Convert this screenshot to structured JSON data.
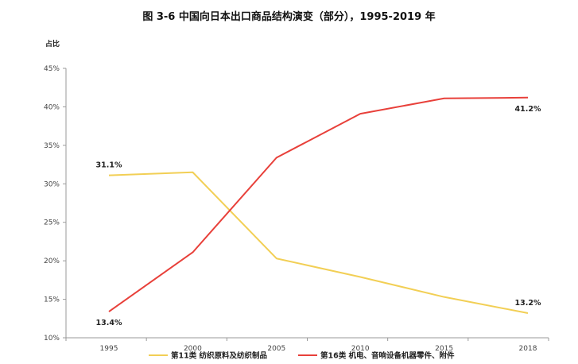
{
  "chart_data": {
    "type": "line",
    "title": "图 3-6 中国向日本出口商品结构演变（部分），1995-2019 年",
    "ylabel": "占比",
    "xlabel": "",
    "x": [
      "1995",
      "2000",
      "2005",
      "2010",
      "2015",
      "2018"
    ],
    "y_ticks": [
      "10%",
      "15%",
      "20%",
      "25%",
      "30%",
      "35%",
      "40%",
      "45%"
    ],
    "ylim": [
      10,
      45
    ],
    "grid": false,
    "legend_position": "bottom",
    "series": [
      {
        "name": "第11类 纺织原料及纺织制品",
        "color": "#f2cf55",
        "values": [
          31.1,
          31.5,
          20.3,
          17.9,
          15.3,
          13.2
        ],
        "labels": [
          {
            "index": 0,
            "text": "31.1%",
            "position": "above"
          },
          {
            "index": 5,
            "text": "13.2%",
            "position": "above"
          }
        ]
      },
      {
        "name": "第16类 机电、音响设备机器零件、附件",
        "color": "#e8403a",
        "values": [
          13.4,
          21.1,
          33.4,
          39.1,
          41.1,
          41.2
        ],
        "labels": [
          {
            "index": 0,
            "text": "13.4%",
            "position": "below"
          },
          {
            "index": 5,
            "text": "41.2%",
            "position": "below"
          }
        ]
      }
    ]
  }
}
